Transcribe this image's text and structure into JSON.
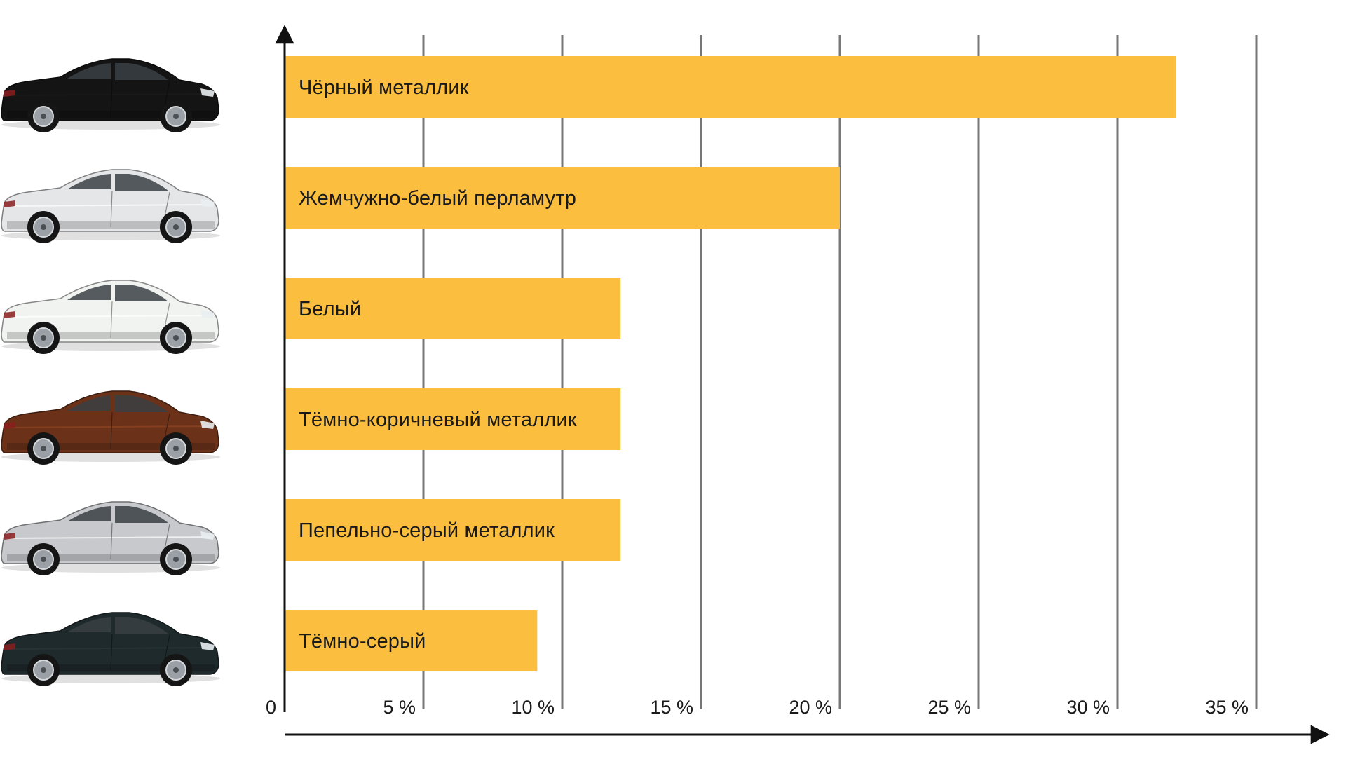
{
  "chart_data": {
    "type": "bar",
    "orientation": "horizontal",
    "categories": [
      "Чёрный металлик",
      "Жемчужно-белый перламутр",
      "Белый",
      "Тёмно-коричневый металлик",
      "Пепельно-серый металлик",
      "Тёмно-серый"
    ],
    "values": [
      32.1,
      20.0,
      12.1,
      12.1,
      12.1,
      9.1
    ],
    "car_colors": [
      "#141414",
      "#e4e6e8",
      "#f1f3f1",
      "#6b3219",
      "#c7c9cc",
      "#1e2a2c"
    ],
    "xlim": [
      0,
      37
    ],
    "x_ticks": [
      0,
      5,
      10,
      15,
      20,
      25,
      30,
      35
    ],
    "x_tick_labels": [
      "0",
      "5 %",
      "10 %",
      "15 %",
      "20 %",
      "25 %",
      "30 %",
      "35 %"
    ],
    "grid": true,
    "legend": "none",
    "bar_color": "#fcbe3e",
    "title": "",
    "xlabel": "",
    "ylabel": ""
  }
}
